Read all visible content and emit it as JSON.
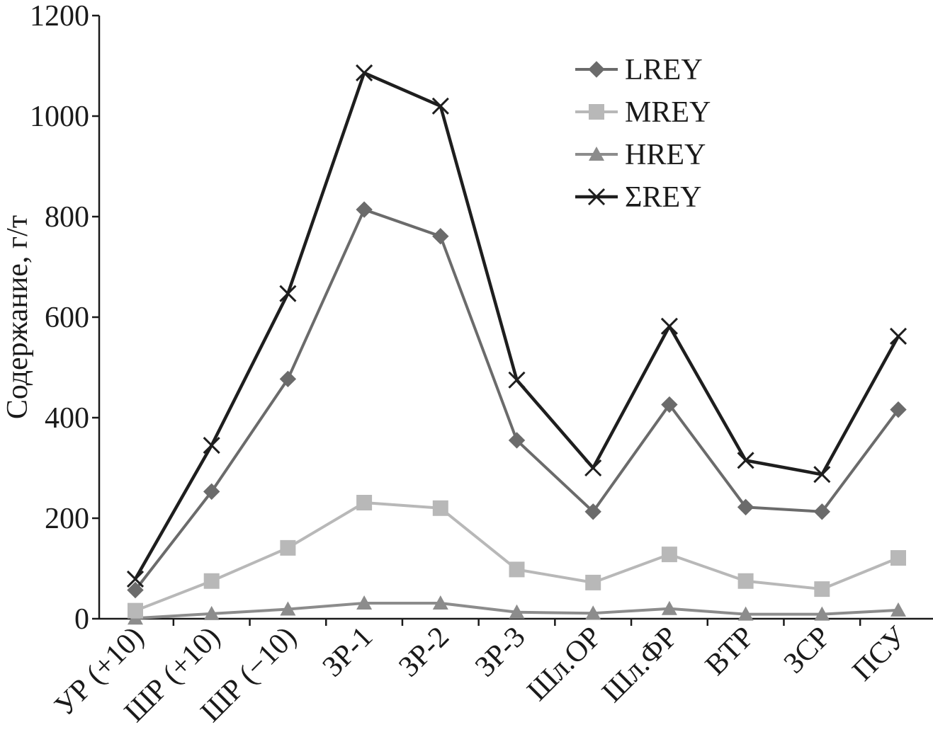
{
  "chart_data": {
    "type": "line",
    "ylabel": "Содержание, г/т",
    "xlabel": "",
    "ylim": [
      0,
      1200
    ],
    "yticks": [
      0,
      200,
      400,
      600,
      800,
      1000,
      1200
    ],
    "categories": [
      "УР (+10)",
      "ШР (+10)",
      "ШР (−10)",
      "ЗР-1",
      "ЗР-2",
      "ЗР-3",
      "Шл.ОР",
      "Шл.ФР",
      "ВТР",
      "ЗСР",
      "ПСУ"
    ],
    "series": [
      {
        "name": "LREY",
        "marker": "diamond",
        "color": "#6b6b6b",
        "values": [
          57,
          253,
          477,
          814,
          761,
          355,
          213,
          426,
          222,
          213,
          416
        ]
      },
      {
        "name": "MREY",
        "marker": "square",
        "color": "#b8b8b8",
        "values": [
          16,
          75,
          141,
          231,
          220,
          98,
          72,
          128,
          75,
          59,
          121
        ]
      },
      {
        "name": "HREY",
        "marker": "triangle",
        "color": "#8c8c8c",
        "values": [
          1,
          10,
          19,
          31,
          31,
          13,
          11,
          20,
          9,
          9,
          17
        ]
      },
      {
        "name": "ΣREY",
        "marker": "cross",
        "color": "#1e1e1e",
        "values": [
          79,
          345,
          647,
          1086,
          1020,
          475,
          300,
          582,
          315,
          287,
          562
        ]
      }
    ],
    "grid": false,
    "legend_position": "top-right"
  }
}
